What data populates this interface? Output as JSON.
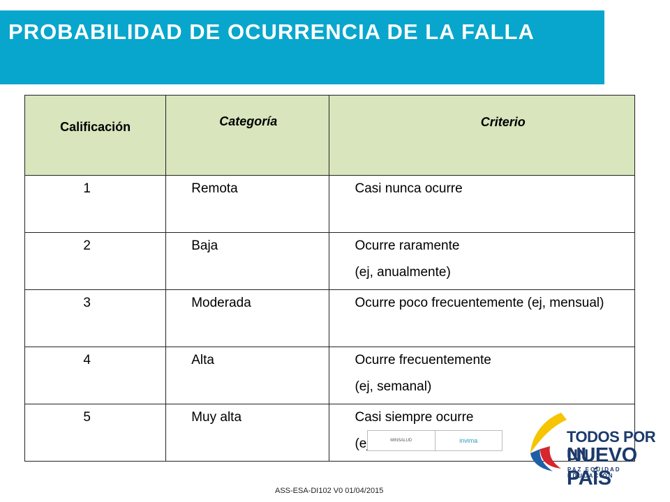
{
  "slide": {
    "title": "PROBABILIDAD DE OCURRENCIA DE LA FALLA"
  },
  "table": {
    "headers": [
      "Calificación",
      "Categoría",
      "Criterio"
    ],
    "rows": [
      {
        "score": "1",
        "category": "Remota",
        "criterion_lines": [
          "Casi nunca ocurre"
        ]
      },
      {
        "score": "2",
        "category": "Baja",
        "criterion_lines": [
          "Ocurre raramente",
          "(ej, anualmente)"
        ]
      },
      {
        "score": "3",
        "category": "Moderada",
        "criterion_lines": [
          "Ocurre poco frecuentemente (ej, mensual)"
        ]
      },
      {
        "score": "4",
        "category": "Alta",
        "criterion_lines": [
          "Ocurre frecuentemente",
          "(ej, semanal)"
        ]
      },
      {
        "score": "5",
        "category": "Muy alta",
        "criterion_lines": [
          "Casi siempre ocurre",
          "(ej, diario)"
        ]
      }
    ]
  },
  "logos": {
    "strip_left": "MINSALUD",
    "strip_right": "invima",
    "gov_line1": "TODOS POR UN",
    "gov_line2": "NUEVO PAÍS",
    "gov_line3": "PAZ EQUIDAD EDUCACIÓN"
  },
  "footer": {
    "code": "ASS-ESA-DI102   V0   01/04/2015"
  },
  "colors": {
    "title_bar": "#08a6cc",
    "header_fill": "#d8e5bd",
    "gov_navy": "#1c3a6b",
    "gov_yellow": "#f6c400",
    "gov_blue": "#1f5fa8",
    "gov_red": "#d6262e"
  }
}
